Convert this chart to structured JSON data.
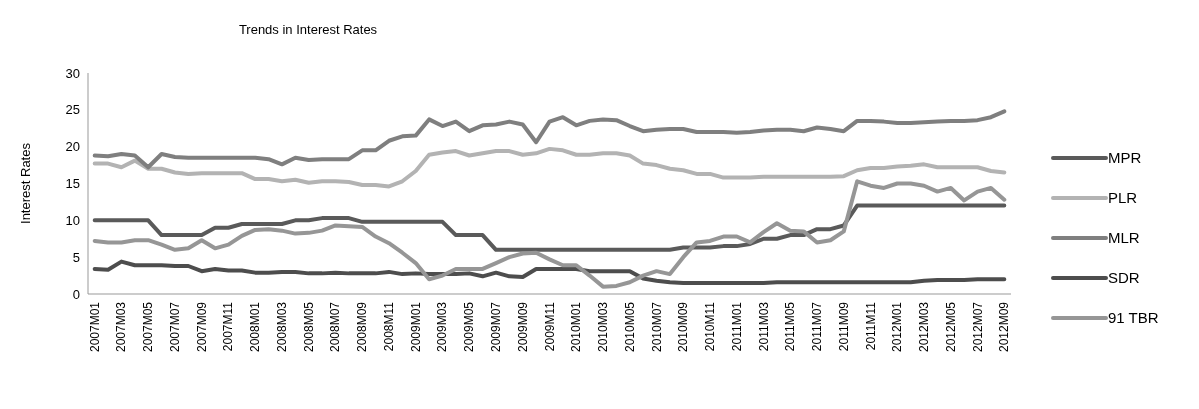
{
  "chart_data": {
    "type": "line",
    "title": "Trends in Interest Rates",
    "ylabel": "Interest Rates",
    "categories": [
      "2007M01",
      null,
      "2007M03",
      null,
      "2007M05",
      null,
      "2007M07",
      null,
      "2007M09",
      null,
      "2007M11",
      null,
      "2008M01",
      null,
      "2008M03",
      null,
      "2008M05",
      null,
      "2008M07",
      null,
      "2008M09",
      null,
      "2008M11",
      null,
      "2009M01",
      null,
      "2009M03",
      null,
      "2009M05",
      null,
      "2009M07",
      null,
      "2009M09",
      null,
      "2009M11",
      null,
      "2010M01",
      null,
      "2010M03",
      null,
      "2010M05",
      null,
      "2010M07",
      null,
      "2010M09",
      null,
      "2010M11",
      null,
      "2011M01",
      null,
      "2011M03",
      null,
      "2011M05",
      null,
      "2011M07",
      null,
      "2011M09",
      null,
      "2011M11",
      null,
      "2012M01",
      null,
      "2012M03",
      null,
      "2012M05",
      null,
      "2012M07",
      null,
      "2012M09"
    ],
    "series": [
      {
        "name": "MPR",
        "color": "#5a5a5a",
        "values": [
          10,
          10,
          10,
          10,
          10,
          8,
          8,
          8,
          8,
          9,
          9,
          9.5,
          9.5,
          9.5,
          9.5,
          10,
          10,
          10.3,
          10.3,
          10.3,
          9.8,
          9.8,
          9.8,
          9.8,
          9.8,
          9.8,
          9.8,
          8,
          8,
          8,
          6,
          6,
          6,
          6,
          6,
          6,
          6,
          6,
          6,
          6,
          6,
          6,
          6,
          6,
          6.3,
          6.3,
          6.3,
          6.5,
          6.5,
          6.8,
          7.5,
          7.5,
          8,
          8,
          8.8,
          8.8,
          9.3,
          12,
          12,
          12,
          12,
          12,
          12,
          12,
          12,
          12,
          12,
          12,
          12
        ]
      },
      {
        "name": "PLR",
        "color": "#b3b3b3",
        "values": [
          17.7,
          17.7,
          17.2,
          18.1,
          17,
          17,
          16.5,
          16.3,
          16.4,
          16.4,
          16.4,
          16.4,
          15.6,
          15.6,
          15.3,
          15.5,
          15.1,
          15.3,
          15.3,
          15.2,
          14.8,
          14.8,
          14.6,
          15.3,
          16.7,
          18.9,
          19.2,
          19.4,
          18.8,
          19.1,
          19.4,
          19.4,
          18.9,
          19.1,
          19.7,
          19.5,
          18.9,
          18.9,
          19.1,
          19.1,
          18.8,
          17.7,
          17.5,
          17,
          16.8,
          16.3,
          16.3,
          15.8,
          15.8,
          15.8,
          15.9,
          15.9,
          15.9,
          15.9,
          15.9,
          15.9,
          16,
          16.8,
          17.1,
          17.1,
          17.3,
          17.4,
          17.6,
          17.2,
          17.2,
          17.2,
          17.2,
          16.7,
          16.5
        ]
      },
      {
        "name": "MLR",
        "color": "#7f7f7f",
        "values": [
          18.8,
          18.7,
          19,
          18.8,
          17.2,
          19,
          18.6,
          18.5,
          18.5,
          18.5,
          18.5,
          18.5,
          18.5,
          18.3,
          17.6,
          18.5,
          18.2,
          18.3,
          18.3,
          18.3,
          19.5,
          19.5,
          20.8,
          21.4,
          21.5,
          23.7,
          22.8,
          23.4,
          22.1,
          22.9,
          23,
          23.4,
          23,
          20.6,
          23.4,
          24,
          22.9,
          23.5,
          23.7,
          23.6,
          22.8,
          22.1,
          22.3,
          22.4,
          22.4,
          22,
          22,
          22,
          21.9,
          22,
          22.2,
          22.3,
          22.3,
          22.1,
          22.6,
          22.4,
          22.1,
          23.5,
          23.5,
          23.4,
          23.2,
          23.2,
          23.3,
          23.4,
          23.5,
          23.5,
          23.6,
          24,
          24.8
        ]
      },
      {
        "name": "SDR",
        "color": "#4d4d4d",
        "values": [
          3.4,
          3.3,
          4.4,
          3.9,
          3.9,
          3.9,
          3.8,
          3.8,
          3.1,
          3.4,
          3.2,
          3.2,
          2.9,
          2.9,
          3,
          3,
          2.8,
          2.8,
          2.9,
          2.8,
          2.8,
          2.8,
          3,
          2.7,
          2.8,
          2.7,
          2.7,
          2.7,
          2.8,
          2.4,
          2.9,
          2.4,
          2.3,
          3.4,
          3.4,
          3.4,
          3.4,
          3.1,
          3.1,
          3.1,
          3.1,
          2.1,
          1.8,
          1.6,
          1.5,
          1.5,
          1.5,
          1.5,
          1.5,
          1.5,
          1.5,
          1.6,
          1.6,
          1.6,
          1.6,
          1.6,
          1.6,
          1.6,
          1.6,
          1.6,
          1.6,
          1.6,
          1.8,
          1.9,
          1.9,
          1.9,
          2,
          2,
          2
        ]
      },
      {
        "name": "91 TBR",
        "color": "#969696",
        "values": [
          7.2,
          7,
          7,
          7.3,
          7.3,
          6.7,
          6,
          6.2,
          7.3,
          6.2,
          6.7,
          7.9,
          8.7,
          8.8,
          8.6,
          8.2,
          8.3,
          8.6,
          9.3,
          9.2,
          9.1,
          7.8,
          6.9,
          5.6,
          4.2,
          2,
          2.5,
          3.4,
          3.4,
          3.4,
          4.2,
          5,
          5.5,
          5.6,
          4.7,
          3.9,
          3.9,
          2.5,
          1,
          1.1,
          1.6,
          2.5,
          3.1,
          2.7,
          5,
          7,
          7.2,
          7.8,
          7.8,
          7,
          8.4,
          9.6,
          8.6,
          8.5,
          7,
          7.3,
          8.5,
          15.3,
          14.7,
          14.4,
          15,
          15,
          14.7,
          13.9,
          14.4,
          12.7,
          13.9,
          14.4,
          12.8
        ]
      }
    ],
    "ylim": [
      0,
      30
    ],
    "yticks": [
      0,
      5,
      10,
      15,
      20,
      25,
      30
    ],
    "legend": "right"
  }
}
